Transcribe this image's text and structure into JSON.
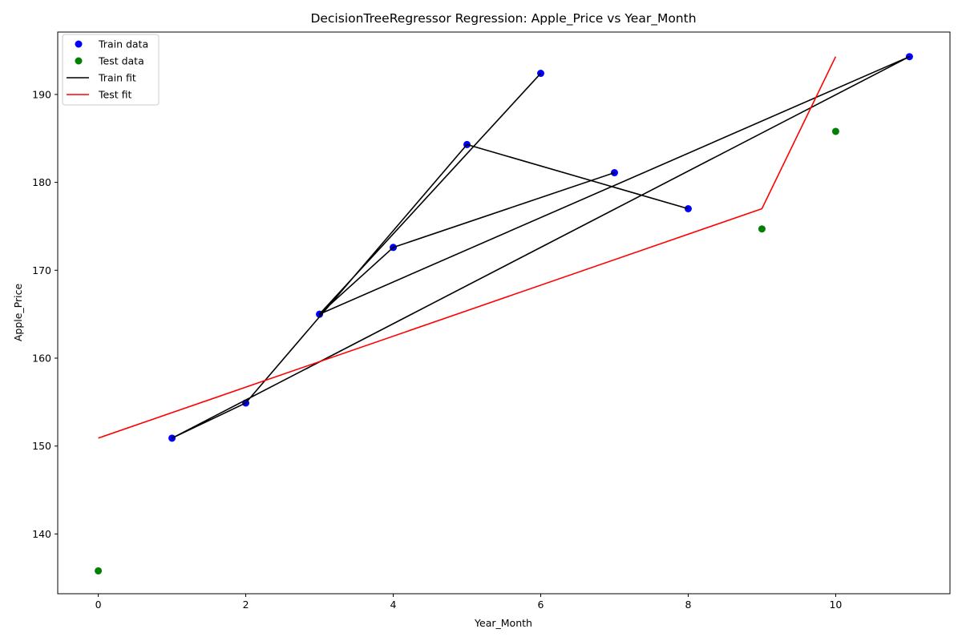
{
  "chart_data": {
    "type": "scatter",
    "title": "DecisionTreeRegressor Regression: Apple_Price vs Year_Month",
    "xlabel": "Year_Month",
    "ylabel": "Apple_Price",
    "xlim": [
      -0.55,
      11.55
    ],
    "ylim": [
      133.2,
      197.1
    ],
    "xticks": [
      0,
      2,
      4,
      6,
      8,
      10
    ],
    "yticks": [
      140,
      150,
      160,
      170,
      180,
      190
    ],
    "grid": false,
    "legend_position": "upper-left",
    "series": [
      {
        "name": "Train data",
        "kind": "scatter",
        "color": "#0000ff",
        "points": [
          [
            6,
            192.4
          ],
          [
            3,
            165.0
          ],
          [
            4,
            172.6
          ],
          [
            7,
            181.1
          ],
          [
            11,
            194.3
          ],
          [
            1,
            150.9
          ],
          [
            2,
            154.9
          ],
          [
            5,
            184.3
          ],
          [
            8,
            177.0
          ]
        ]
      },
      {
        "name": "Test data",
        "kind": "scatter",
        "color": "#008000",
        "points": [
          [
            0,
            135.8
          ],
          [
            9,
            174.7
          ],
          [
            10,
            185.8
          ]
        ]
      },
      {
        "name": "Train fit",
        "kind": "line",
        "color": "#000000",
        "points": [
          [
            6,
            192.4
          ],
          [
            3,
            165.0
          ],
          [
            4,
            172.6
          ],
          [
            7,
            181.1
          ],
          [
            4,
            172.6
          ],
          [
            3,
            165.0
          ],
          [
            11,
            194.3
          ],
          [
            1,
            150.9
          ],
          [
            2,
            154.9
          ],
          [
            5,
            184.3
          ],
          [
            8,
            177.0
          ]
        ]
      },
      {
        "name": "Test fit",
        "kind": "line",
        "color": "#ff0000",
        "points": [
          [
            0,
            150.9
          ],
          [
            9,
            177.0
          ],
          [
            10,
            194.3
          ]
        ]
      }
    ]
  }
}
